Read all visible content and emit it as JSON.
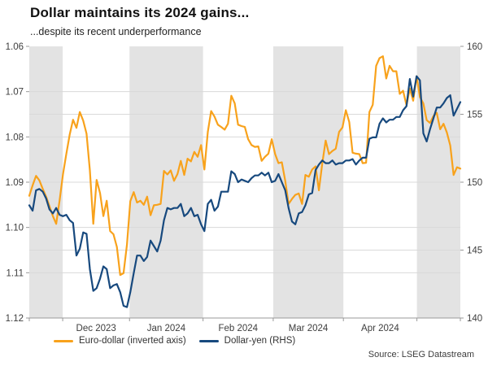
{
  "header": {
    "title": "Dollar maintains its 2024 gains...",
    "subtitle": "...despite its recent underperformance"
  },
  "source": "Source: LSEG Datastream",
  "colors": {
    "band": "#e3e3e3",
    "grid": "#d9d9d9",
    "axis": "#999999",
    "tick_text": "#3d3d3d",
    "euro_dollar": "#F8A21C",
    "dollar_yen": "#17497E"
  },
  "chart_data": {
    "type": "line",
    "title": "Dollar maintains its 2024 gains...",
    "subtitle": "...despite its recent underperformance",
    "legend_position": "bottom-left",
    "grid": true,
    "x_axis": {
      "labels": [
        "Dec 2023",
        "Jan 2024",
        "Feb 2024",
        "Mar 2024",
        "Apr 2024"
      ],
      "month_boundaries": [
        0,
        10,
        30,
        52,
        73,
        94,
        116,
        129
      ],
      "shaded_band_indices": [
        0,
        2,
        4,
        6
      ]
    },
    "left_axis": {
      "min": 1.06,
      "max": 1.12,
      "inverted": true,
      "tick_labels": [
        "1.06",
        "1.07",
        "1.08",
        "1.09",
        "1.10",
        "1.11",
        "1.12"
      ],
      "tick_values": [
        1.06,
        1.07,
        1.08,
        1.09,
        1.1,
        1.11,
        1.12
      ],
      "grid_values": [
        1.07,
        1.08,
        1.09,
        1.1,
        1.11
      ]
    },
    "right_axis": {
      "min": 140,
      "max": 160,
      "tick_labels": [
        "160",
        "155",
        "150",
        "145",
        "140"
      ],
      "tick_values": [
        160,
        155,
        150,
        145,
        140
      ],
      "grid_values": [
        155,
        145
      ]
    },
    "series": [
      {
        "name": "Euro-dollar (inverted axis)",
        "axis": "left",
        "color": "#F8A21C",
        "values": [
          1.093,
          1.0907,
          1.0886,
          1.0896,
          1.0915,
          1.0932,
          1.0953,
          1.0975,
          1.0992,
          1.094,
          1.0883,
          1.0838,
          1.0795,
          1.0762,
          1.078,
          1.0745,
          1.0764,
          1.0793,
          1.0874,
          1.0992,
          1.0895,
          1.0924,
          1.0975,
          1.0941,
          1.1008,
          1.1015,
          1.1043,
          1.1105,
          1.1101,
          1.1038,
          1.0942,
          1.0922,
          1.0945,
          1.0941,
          1.095,
          1.0932,
          1.0973,
          1.0951,
          1.095,
          1.0948,
          1.0875,
          1.0883,
          1.0874,
          1.0897,
          1.0882,
          1.0853,
          1.0884,
          1.0848,
          1.0854,
          1.0833,
          1.0844,
          1.0818,
          1.0872,
          1.0789,
          1.0743,
          1.0755,
          1.0773,
          1.0778,
          1.0784,
          1.0771,
          1.0709,
          1.0726,
          1.0773,
          1.0776,
          1.0778,
          1.0805,
          1.0818,
          1.0822,
          1.0821,
          1.0853,
          1.0844,
          1.0837,
          1.0805,
          1.0838,
          1.0858,
          1.0856,
          1.0897,
          1.0948,
          1.0937,
          1.0928,
          1.0925,
          1.0948,
          1.0884,
          1.0888,
          1.0872,
          1.0865,
          1.0918,
          1.0859,
          1.0808,
          1.0838,
          1.0831,
          1.0826,
          1.0789,
          1.0779,
          1.0741,
          1.0767,
          1.0835,
          1.0837,
          1.0838,
          1.0858,
          1.0857,
          1.0745,
          1.0729,
          1.0643,
          1.0626,
          1.0622,
          1.0671,
          1.0643,
          1.0655,
          1.0655,
          1.0705,
          1.0698,
          1.073,
          1.0693,
          1.072,
          1.0666,
          1.0712,
          1.0726,
          1.0763,
          1.0769,
          1.0754,
          1.0747,
          1.0783,
          1.0771,
          1.079,
          1.0819,
          1.0884,
          1.0867,
          1.087
        ]
      },
      {
        "name": "Dollar-yen (RHS)",
        "axis": "right",
        "color": "#17497E",
        "values": [
          148.3,
          147.9,
          149.4,
          149.5,
          149.3,
          148.8,
          148.0,
          147.7,
          148.1,
          147.6,
          147.5,
          147.6,
          147.2,
          147.0,
          144.6,
          145.1,
          146.3,
          146.2,
          143.6,
          142.0,
          142.2,
          142.9,
          143.8,
          143.6,
          142.2,
          142.4,
          142.5,
          141.9,
          140.9,
          140.8,
          141.9,
          143.3,
          144.6,
          144.6,
          144.2,
          144.5,
          145.7,
          145.3,
          144.9,
          145.7,
          147.2,
          148.1,
          148.0,
          148.1,
          148.1,
          148.4,
          147.5,
          147.7,
          148.1,
          147.5,
          147.6,
          146.9,
          146.4,
          148.4,
          148.7,
          147.9,
          148.2,
          149.3,
          149.3,
          149.3,
          150.8,
          150.6,
          150.0,
          150.2,
          150.1,
          150.0,
          150.3,
          150.5,
          150.5,
          150.7,
          150.5,
          150.7,
          150.0,
          150.1,
          150.6,
          150.0,
          149.4,
          148.1,
          147.1,
          146.9,
          147.7,
          147.8,
          148.3,
          149.1,
          149.2,
          150.9,
          151.3,
          151.6,
          151.4,
          151.4,
          151.6,
          151.3,
          151.4,
          151.4,
          151.6,
          151.6,
          151.7,
          151.3,
          151.6,
          151.8,
          151.8,
          153.2,
          153.3,
          153.3,
          154.3,
          154.7,
          154.4,
          154.6,
          154.6,
          154.8,
          154.8,
          155.3,
          155.6,
          157.6,
          156.3,
          157.8,
          157.5,
          153.6,
          153.0,
          153.9,
          154.7,
          155.5,
          155.5,
          155.8,
          156.2,
          156.4,
          154.9,
          155.4,
          155.9
        ]
      }
    ]
  },
  "legend": {
    "items": [
      "Euro-dollar (inverted axis)",
      "Dollar-yen (RHS)"
    ]
  }
}
